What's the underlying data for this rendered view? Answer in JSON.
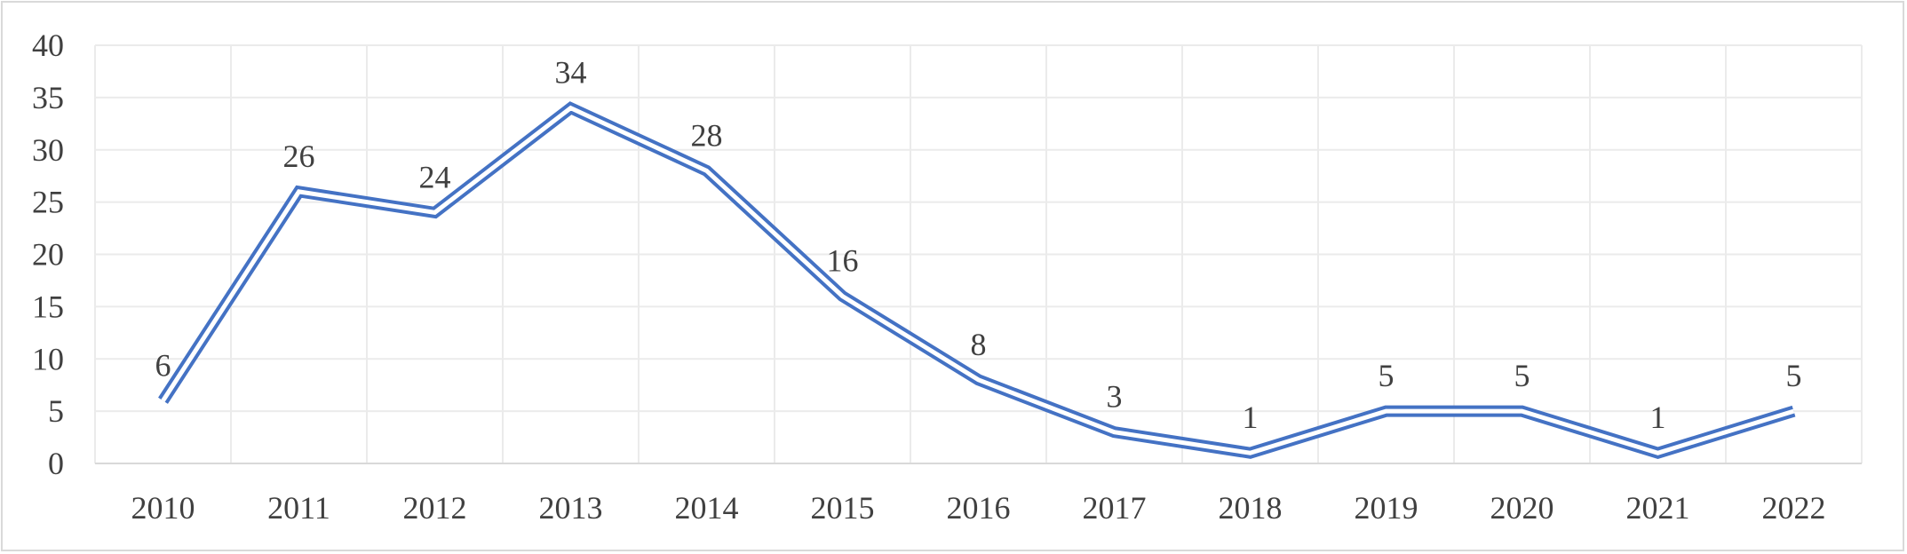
{
  "chart_data": {
    "type": "line",
    "title": "",
    "xlabel": "",
    "ylabel": "",
    "categories": [
      "2010",
      "2011",
      "2012",
      "2013",
      "2014",
      "2015",
      "2016",
      "2017",
      "2018",
      "2019",
      "2020",
      "2021",
      "2022"
    ],
    "series": [
      {
        "values": [
          6,
          26,
          24,
          34,
          28,
          16,
          8,
          3,
          1,
          5,
          5,
          1,
          5
        ],
        "color": "#4472c4",
        "line_style": "double"
      }
    ],
    "ylim": [
      0,
      40
    ],
    "yticks": [
      "0",
      "5",
      "10",
      "15",
      "20",
      "25",
      "30",
      "35",
      "40"
    ],
    "grid": "both",
    "grid_color": "#ebebeb",
    "data_labels": true,
    "legend": "none"
  }
}
